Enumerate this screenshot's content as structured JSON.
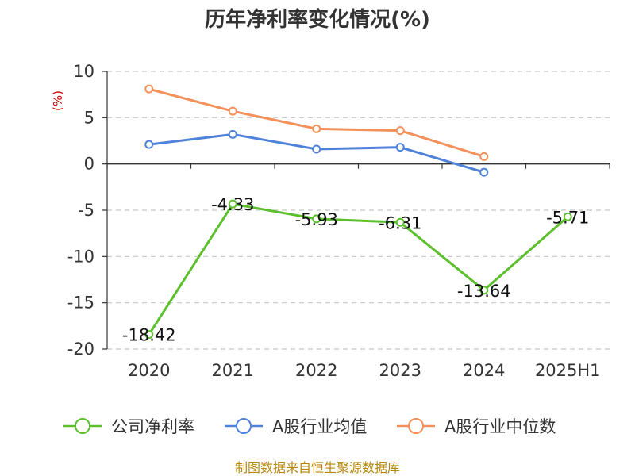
{
  "chart_data": {
    "type": "line",
    "title": "历年净利率变化情况(%)",
    "ylabel": "(%)",
    "xlabel": "",
    "categories": [
      "2020",
      "2021",
      "2022",
      "2023",
      "2024",
      "2025H1"
    ],
    "ylim": [
      -20,
      10
    ],
    "yticks": [
      10,
      5,
      0,
      -5,
      -10,
      -15,
      -20
    ],
    "grid": true,
    "legend_position": "bottom",
    "series": [
      {
        "name": "公司净利率",
        "color": "#5cc02d",
        "values": [
          -18.42,
          -4.33,
          -5.93,
          -6.31,
          -13.64,
          -5.71
        ],
        "labels": [
          "-18.42",
          "-4.33",
          "-5.93",
          "-6.31",
          "-13.64",
          "-5.71"
        ]
      },
      {
        "name": "A股行业均值",
        "color": "#4f82d9",
        "values": [
          2.1,
          3.2,
          1.6,
          1.8,
          -0.9,
          null
        ]
      },
      {
        "name": "A股行业中位数",
        "color": "#f4905a",
        "values": [
          8.1,
          5.7,
          3.8,
          3.6,
          0.8,
          null
        ]
      }
    ]
  },
  "source": "制图数据来自恒生聚源数据库"
}
